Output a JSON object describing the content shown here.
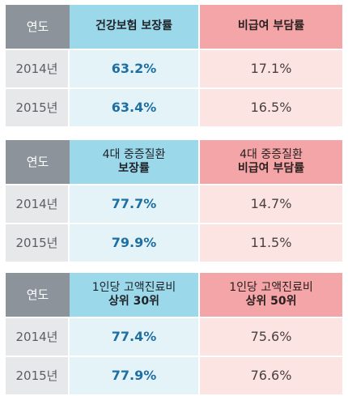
{
  "tables": [
    {
      "header": {
        "year": "연도",
        "col1_lines": [
          {
            "text": "건강보험 보장률",
            "bold": true
          }
        ],
        "col2_lines": [
          {
            "text": "비급여 부담률",
            "bold": true
          }
        ]
      },
      "rows": [
        {
          "year": "2014년",
          "col1": "63.2%",
          "col2": "17.1%"
        },
        {
          "year": "2015년",
          "col1": "63.4%",
          "col2": "16.5%"
        }
      ]
    },
    {
      "header": {
        "year": "연도",
        "col1_lines": [
          {
            "text": "4대 중증질환",
            "bold": false
          },
          {
            "text": "보장률",
            "bold": true
          }
        ],
        "col2_lines": [
          {
            "text": "4대 중증질환",
            "bold": false
          },
          {
            "text": "비급여 부담률",
            "bold": true
          }
        ]
      },
      "rows": [
        {
          "year": "2014년",
          "col1": "77.7%",
          "col2": "14.7%"
        },
        {
          "year": "2015년",
          "col1": "79.9%",
          "col2": "11.5%"
        }
      ]
    },
    {
      "header": {
        "year": "연도",
        "col1_lines": [
          {
            "text": "1인당 고액진료비",
            "bold": false
          },
          {
            "text": "상위 30위",
            "bold": true
          }
        ],
        "col2_lines": [
          {
            "text": "1인당 고액진료비",
            "bold": false
          },
          {
            "text": "상위 50위",
            "bold": true
          }
        ]
      },
      "rows": [
        {
          "year": "2014년",
          "col1": "77.4%",
          "col2": "75.6%"
        },
        {
          "year": "2015년",
          "col1": "77.9%",
          "col2": "76.6%"
        }
      ]
    }
  ],
  "chart_data": {
    "type": "table",
    "tables": [
      {
        "columns": [
          "연도",
          "건강보험 보장률",
          "비급여 부담률"
        ],
        "rows": [
          [
            "2014년",
            "63.2%",
            "17.1%"
          ],
          [
            "2015년",
            "63.4%",
            "16.5%"
          ]
        ]
      },
      {
        "columns": [
          "연도",
          "4대 중증질환 보장률",
          "4대 중증질환 비급여 부담률"
        ],
        "rows": [
          [
            "2014년",
            "77.7%",
            "14.7%"
          ],
          [
            "2015년",
            "79.9%",
            "11.5%"
          ]
        ]
      },
      {
        "columns": [
          "연도",
          "1인당 고액진료비 상위 30위",
          "1인당 고액진료비 상위 50위"
        ],
        "rows": [
          [
            "2014년",
            "77.4%",
            "75.6%"
          ],
          [
            "2015년",
            "77.9%",
            "76.6%"
          ]
        ]
      }
    ]
  },
  "colors": {
    "year_header": "#8c939a",
    "blue_header": "#9bd8ea",
    "red_header": "#f4a5a8",
    "year_cell": "#e6e8ea",
    "blue_cell": "#e4f3f8",
    "red_cell": "#fce4e3",
    "blue_value_text": "#1e6fa2"
  }
}
